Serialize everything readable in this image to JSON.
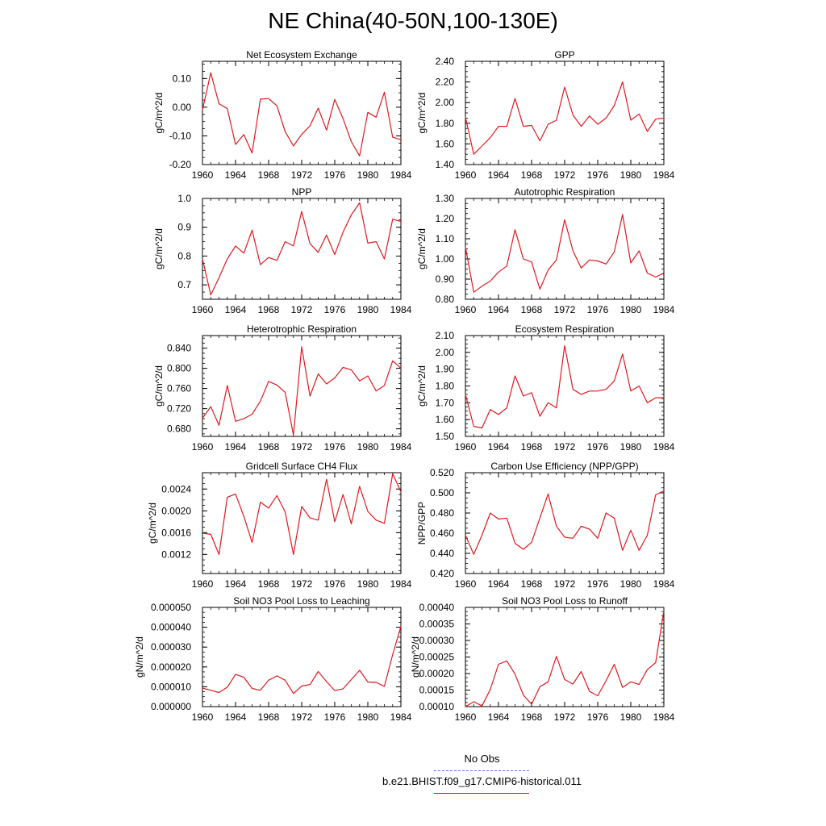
{
  "page": {
    "title": "NE China(40-50N,100-130E)"
  },
  "legend": {
    "items": [
      {
        "label": "No Obs",
        "color": "#6b6bd8",
        "style": "dashed"
      },
      {
        "label": "b.e21.BHIST.f09_g17.CMIP6-historical.011",
        "color": "#e0191e",
        "style": "solid"
      }
    ]
  },
  "colors": {
    "series": "#e0191e",
    "obs": "#6b6bd8",
    "axis": "#000000"
  },
  "chart_data": [
    {
      "type": "line",
      "title": "Net Ecosystem Exchange",
      "ylabel": "gC/m^2/d",
      "xlabel": "",
      "xlim": [
        1960,
        1984
      ],
      "ylim": [
        -0.2,
        0.16
      ],
      "yticks": [
        -0.2,
        -0.1,
        0.0,
        0.1
      ],
      "ytick_labels": [
        "-0.20",
        "-0.10",
        "0.00",
        "0.10"
      ],
      "xticks": [
        1960,
        1964,
        1968,
        1972,
        1976,
        1980,
        1984
      ],
      "xtick_labels": [
        "1960",
        "1964",
        "1968",
        "1972",
        "1976",
        "1980",
        "1984"
      ],
      "grid": false,
      "series": [
        {
          "name": "b.e21.BHIST.f09_g17.CMIP6-historical.011",
          "x": [
            1960,
            1961,
            1962,
            1963,
            1964,
            1965,
            1966,
            1967,
            1968,
            1969,
            1970,
            1971,
            1972,
            1973,
            1974,
            1975,
            1976,
            1977,
            1978,
            1979,
            1980,
            1981,
            1982,
            1983,
            1984
          ],
          "y": [
            -0.01,
            0.12,
            0.012,
            -0.005,
            -0.13,
            -0.095,
            -0.16,
            0.028,
            0.03,
            0.005,
            -0.085,
            -0.135,
            -0.095,
            -0.065,
            -0.003,
            -0.08,
            0.027,
            -0.04,
            -0.12,
            -0.17,
            -0.018,
            -0.035,
            0.052,
            -0.105,
            -0.113
          ]
        }
      ]
    },
    {
      "type": "line",
      "title": "GPP",
      "ylabel": "gC/m^2/d",
      "xlabel": "",
      "xlim": [
        1960,
        1984
      ],
      "ylim": [
        1.4,
        2.4
      ],
      "yticks": [
        1.4,
        1.6,
        1.8,
        2.0,
        2.2,
        2.4
      ],
      "ytick_labels": [
        "1.40",
        "1.60",
        "1.80",
        "2.00",
        "2.20",
        "2.40"
      ],
      "xticks": [
        1960,
        1964,
        1968,
        1972,
        1976,
        1980,
        1984
      ],
      "xtick_labels": [
        "1960",
        "1964",
        "1968",
        "1972",
        "1976",
        "1980",
        "1984"
      ],
      "grid": false,
      "series": [
        {
          "name": "b.e21.BHIST.f09_g17.CMIP6-historical.011",
          "x": [
            1960,
            1961,
            1962,
            1963,
            1964,
            1965,
            1966,
            1967,
            1968,
            1969,
            1970,
            1971,
            1972,
            1973,
            1974,
            1975,
            1976,
            1977,
            1978,
            1979,
            1980,
            1981,
            1982,
            1983,
            1984
          ],
          "y": [
            1.86,
            1.5,
            1.58,
            1.66,
            1.77,
            1.77,
            2.04,
            1.77,
            1.78,
            1.63,
            1.79,
            1.83,
            2.15,
            1.88,
            1.77,
            1.87,
            1.79,
            1.85,
            1.97,
            2.2,
            1.83,
            1.89,
            1.72,
            1.84,
            1.85
          ]
        }
      ]
    },
    {
      "type": "line",
      "title": "NPP",
      "ylabel": "gC/m^2/d",
      "xlabel": "",
      "xlim": [
        1960,
        1984
      ],
      "ylim": [
        0.65,
        1.0
      ],
      "yticks": [
        0.7,
        0.8,
        0.9,
        1.0
      ],
      "ytick_labels": [
        "0.7",
        "0.8",
        "0.9",
        "1.0"
      ],
      "xticks": [
        1960,
        1964,
        1968,
        1972,
        1976,
        1980,
        1984
      ],
      "xtick_labels": [
        "1960",
        "1964",
        "1968",
        "1972",
        "1976",
        "1980",
        "1984"
      ],
      "grid": false,
      "series": [
        {
          "name": "b.e21.BHIST.f09_g17.CMIP6-historical.011",
          "x": [
            1960,
            1961,
            1962,
            1963,
            1964,
            1965,
            1966,
            1967,
            1968,
            1969,
            1970,
            1971,
            1972,
            1973,
            1974,
            1975,
            1976,
            1977,
            1978,
            1979,
            1980,
            1981,
            1982,
            1983,
            1984
          ],
          "y": [
            0.79,
            0.665,
            0.725,
            0.79,
            0.835,
            0.81,
            0.89,
            0.77,
            0.795,
            0.785,
            0.85,
            0.835,
            0.955,
            0.843,
            0.813,
            0.873,
            0.805,
            0.883,
            0.943,
            0.985,
            0.845,
            0.85,
            0.79,
            0.928,
            0.92
          ]
        }
      ]
    },
    {
      "type": "line",
      "title": "Autotrophic Respiration",
      "ylabel": "gC/m^2/d",
      "xlabel": "",
      "xlim": [
        1960,
        1984
      ],
      "ylim": [
        0.8,
        1.3
      ],
      "yticks": [
        0.8,
        0.9,
        1.0,
        1.1,
        1.2,
        1.3
      ],
      "ytick_labels": [
        "0.80",
        "0.90",
        "1.00",
        "1.10",
        "1.20",
        "1.30"
      ],
      "xticks": [
        1960,
        1964,
        1968,
        1972,
        1976,
        1980,
        1984
      ],
      "xtick_labels": [
        "1960",
        "1964",
        "1968",
        "1972",
        "1976",
        "1980",
        "1984"
      ],
      "grid": false,
      "series": [
        {
          "name": "b.e21.BHIST.f09_g17.CMIP6-historical.011",
          "x": [
            1960,
            1961,
            1962,
            1963,
            1964,
            1965,
            1966,
            1967,
            1968,
            1969,
            1970,
            1971,
            1972,
            1973,
            1974,
            1975,
            1976,
            1977,
            1978,
            1979,
            1980,
            1981,
            1982,
            1983,
            1984
          ],
          "y": [
            1.06,
            0.835,
            0.865,
            0.89,
            0.935,
            0.965,
            1.145,
            1.0,
            0.985,
            0.85,
            0.945,
            0.995,
            1.195,
            1.04,
            0.955,
            0.995,
            0.99,
            0.975,
            1.035,
            1.22,
            0.98,
            1.04,
            0.93,
            0.91,
            0.93
          ]
        }
      ]
    },
    {
      "type": "line",
      "title": "Heterotrophic Respiration",
      "ylabel": "gC/m^2/d",
      "xlabel": "",
      "xlim": [
        1960,
        1984
      ],
      "ylim": [
        0.665,
        0.865
      ],
      "yticks": [
        0.68,
        0.72,
        0.76,
        0.8,
        0.84
      ],
      "ytick_labels": [
        "0.680",
        "0.720",
        "0.760",
        "0.800",
        "0.840"
      ],
      "xticks": [
        1960,
        1964,
        1968,
        1972,
        1976,
        1980,
        1984
      ],
      "xtick_labels": [
        "1960",
        "1964",
        "1968",
        "1972",
        "1976",
        "1980",
        "1984"
      ],
      "grid": false,
      "series": [
        {
          "name": "b.e21.BHIST.f09_g17.CMIP6-historical.011",
          "x": [
            1960,
            1961,
            1962,
            1963,
            1964,
            1965,
            1966,
            1967,
            1968,
            1969,
            1970,
            1971,
            1972,
            1973,
            1974,
            1975,
            1976,
            1977,
            1978,
            1979,
            1980,
            1981,
            1982,
            1983,
            1984
          ],
          "y": [
            0.701,
            0.724,
            0.687,
            0.766,
            0.695,
            0.7,
            0.709,
            0.735,
            0.774,
            0.767,
            0.752,
            0.668,
            0.843,
            0.745,
            0.789,
            0.769,
            0.781,
            0.802,
            0.797,
            0.775,
            0.785,
            0.755,
            0.766,
            0.815,
            0.8
          ]
        }
      ]
    },
    {
      "type": "line",
      "title": "Ecosystem Respiration",
      "ylabel": "gC/m^2/d",
      "xlabel": "",
      "xlim": [
        1960,
        1984
      ],
      "ylim": [
        1.5,
        2.1
      ],
      "yticks": [
        1.5,
        1.6,
        1.7,
        1.8,
        1.9,
        2.0,
        2.1
      ],
      "ytick_labels": [
        "1.50",
        "1.60",
        "1.70",
        "1.80",
        "1.90",
        "2.00",
        "2.10"
      ],
      "xticks": [
        1960,
        1964,
        1968,
        1972,
        1976,
        1980,
        1984
      ],
      "xtick_labels": [
        "1960",
        "1964",
        "1968",
        "1972",
        "1976",
        "1980",
        "1984"
      ],
      "grid": false,
      "series": [
        {
          "name": "b.e21.BHIST.f09_g17.CMIP6-historical.011",
          "x": [
            1960,
            1961,
            1962,
            1963,
            1964,
            1965,
            1966,
            1967,
            1968,
            1969,
            1970,
            1971,
            1972,
            1973,
            1974,
            1975,
            1976,
            1977,
            1978,
            1979,
            1980,
            1981,
            1982,
            1983,
            1984
          ],
          "y": [
            1.75,
            1.56,
            1.55,
            1.66,
            1.63,
            1.67,
            1.86,
            1.74,
            1.76,
            1.62,
            1.7,
            1.67,
            2.04,
            1.78,
            1.75,
            1.77,
            1.77,
            1.78,
            1.83,
            1.99,
            1.77,
            1.8,
            1.7,
            1.73,
            1.73
          ]
        }
      ]
    },
    {
      "type": "line",
      "title": "Gridcell Surface CH4 Flux",
      "ylabel": "gC/m^2/d",
      "xlabel": "",
      "xlim": [
        1960,
        1984
      ],
      "ylim": [
        0.00085,
        0.0027
      ],
      "yticks": [
        0.0012,
        0.0016,
        0.002,
        0.0024
      ],
      "ytick_labels": [
        "0.0012",
        "0.0016",
        "0.0020",
        "0.0024"
      ],
      "xticks": [
        1960,
        1964,
        1968,
        1972,
        1976,
        1980,
        1984
      ],
      "xtick_labels": [
        "1960",
        "1964",
        "1968",
        "1972",
        "1976",
        "1980",
        "1984"
      ],
      "grid": false,
      "series": [
        {
          "name": "b.e21.BHIST.f09_g17.CMIP6-historical.011",
          "x": [
            1960,
            1961,
            1962,
            1963,
            1964,
            1965,
            1966,
            1967,
            1968,
            1969,
            1970,
            1971,
            1972,
            1973,
            1974,
            1975,
            1976,
            1977,
            1978,
            1979,
            1980,
            1981,
            1982,
            1983,
            1984
          ],
          "y": [
            0.00159,
            0.00157,
            0.0012,
            0.00225,
            0.00231,
            0.0019,
            0.00142,
            0.00216,
            0.00205,
            0.00228,
            0.00198,
            0.0012,
            0.00208,
            0.00187,
            0.00183,
            0.00258,
            0.0018,
            0.0023,
            0.00176,
            0.00245,
            0.00199,
            0.00183,
            0.00177,
            0.00268,
            0.00235
          ]
        }
      ]
    },
    {
      "type": "line",
      "title": "Carbon Use Efficiency (NPP/GPP)",
      "ylabel": "NPP/GPP",
      "xlabel": "",
      "xlim": [
        1960,
        1984
      ],
      "ylim": [
        0.42,
        0.52
      ],
      "yticks": [
        0.42,
        0.44,
        0.46,
        0.48,
        0.5,
        0.52
      ],
      "ytick_labels": [
        "0.420",
        "0.440",
        "0.460",
        "0.480",
        "0.500",
        "0.520"
      ],
      "xticks": [
        1960,
        1964,
        1968,
        1972,
        1976,
        1980,
        1984
      ],
      "xtick_labels": [
        "1960",
        "1964",
        "1968",
        "1972",
        "1976",
        "1980",
        "1984"
      ],
      "grid": false,
      "series": [
        {
          "name": "b.e21.BHIST.f09_g17.CMIP6-historical.011",
          "x": [
            1960,
            1961,
            1962,
            1963,
            1964,
            1965,
            1966,
            1967,
            1968,
            1969,
            1970,
            1971,
            1972,
            1973,
            1974,
            1975,
            1976,
            1977,
            1978,
            1979,
            1980,
            1981,
            1982,
            1983,
            1984
          ],
          "y": [
            0.458,
            0.439,
            0.458,
            0.48,
            0.474,
            0.475,
            0.45,
            0.444,
            0.451,
            0.475,
            0.499,
            0.467,
            0.456,
            0.455,
            0.467,
            0.464,
            0.455,
            0.48,
            0.475,
            0.443,
            0.463,
            0.443,
            0.458,
            0.498,
            0.502
          ]
        }
      ]
    },
    {
      "type": "line",
      "title": "Soil NO3 Pool Loss to Leaching",
      "ylabel": "gN/m^2/d",
      "xlabel": "",
      "xlim": [
        1960,
        1984
      ],
      "ylim": [
        0.0,
        5e-05
      ],
      "yticks": [
        0.0,
        1e-05,
        2e-05,
        3e-05,
        4e-05,
        5e-05
      ],
      "ytick_labels": [
        "0.000000",
        "0.000010",
        "0.000020",
        "0.000030",
        "0.000040",
        "0.000050"
      ],
      "xticks": [
        1960,
        1964,
        1968,
        1972,
        1976,
        1980,
        1984
      ],
      "xtick_labels": [
        "1960",
        "1964",
        "1968",
        "1972",
        "1976",
        "1980",
        "1984"
      ],
      "grid": false,
      "series": [
        {
          "name": "b.e21.BHIST.f09_g17.CMIP6-historical.011",
          "x": [
            1960,
            1961,
            1962,
            1963,
            1964,
            1965,
            1966,
            1967,
            1968,
            1969,
            1970,
            1971,
            1972,
            1973,
            1974,
            1975,
            1976,
            1977,
            1978,
            1979,
            1980,
            1981,
            1982,
            1983,
            1984
          ],
          "y": [
            9.3e-06,
            8.2e-06,
            7.1e-06,
            9.8e-06,
            1.62e-05,
            1.48e-05,
            9.2e-06,
            8.2e-06,
            1.33e-05,
            1.55e-05,
            1.33e-05,
            6.6e-06,
            1.04e-05,
            1.11e-05,
            1.77e-05,
            1.26e-05,
            8.1e-06,
            9e-06,
            1.36e-05,
            1.83e-05,
            1.24e-05,
            1.22e-05,
            1.02e-05,
            2.62e-05,
            4.04e-05
          ]
        }
      ]
    },
    {
      "type": "line",
      "title": "Soil NO3 Pool Loss to Runoff",
      "ylabel": "gN/m^2/d",
      "xlabel": "",
      "xlim": [
        1960,
        1984
      ],
      "ylim": [
        0.0001,
        0.0004
      ],
      "yticks": [
        0.0001,
        0.00015,
        0.0002,
        0.00025,
        0.0003,
        0.00035,
        0.0004
      ],
      "ytick_labels": [
        "0.00010",
        "0.00015",
        "0.00020",
        "0.00025",
        "0.00030",
        "0.00035",
        "0.00040"
      ],
      "xticks": [
        1960,
        1964,
        1968,
        1972,
        1976,
        1980,
        1984
      ],
      "xtick_labels": [
        "1960",
        "1964",
        "1968",
        "1972",
        "1976",
        "1980",
        "1984"
      ],
      "grid": false,
      "series": [
        {
          "name": "b.e21.BHIST.f09_g17.CMIP6-historical.011",
          "x": [
            1960,
            1961,
            1962,
            1963,
            1964,
            1965,
            1966,
            1967,
            1968,
            1969,
            1970,
            1971,
            1972,
            1973,
            1974,
            1975,
            1976,
            1977,
            1978,
            1979,
            1980,
            1981,
            1982,
            1983,
            1984
          ],
          "y": [
            0.0001,
            0.000115,
            0.000102,
            0.000152,
            0.000228,
            0.000238,
            0.000198,
            0.000135,
            0.000107,
            0.00016,
            0.000175,
            0.000252,
            0.000182,
            0.000168,
            0.000206,
            0.000146,
            0.000133,
            0.000178,
            0.000228,
            0.000158,
            0.000175,
            0.000167,
            0.000212,
            0.000233,
            0.00039
          ]
        }
      ]
    }
  ]
}
